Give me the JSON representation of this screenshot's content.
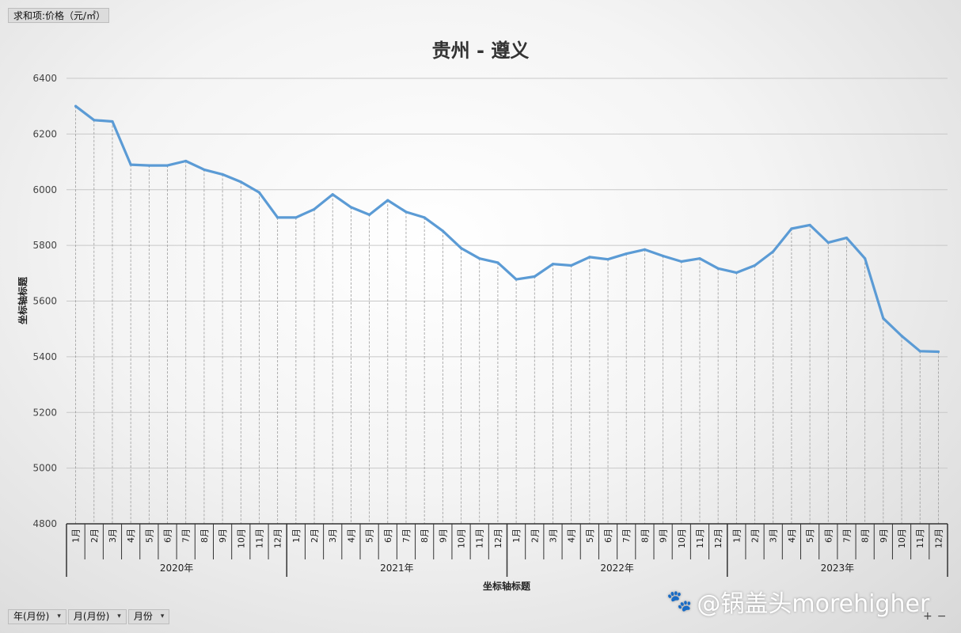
{
  "value_field": "求和项:价格（元/㎡）",
  "row_fields": [
    "年(月份)",
    "月(月份)",
    "月份"
  ],
  "watermark": "@锅盖头morehigher",
  "watermark_icon": "baidu-paw-icon",
  "zoom": {
    "plus": "+",
    "minus": "−"
  },
  "chart_data": {
    "type": "line",
    "title": "贵州 - 遵义",
    "xlabel": "坐标轴标题",
    "ylabel": "坐标轴标题",
    "ylim": [
      4800,
      6400
    ],
    "yticks": [
      4800,
      5000,
      5200,
      5400,
      5600,
      5800,
      6000,
      6200,
      6400
    ],
    "grid": true,
    "legend": "none",
    "line_color": "#5b9bd5",
    "years": [
      "2020年",
      "2021年",
      "2022年",
      "2023年"
    ],
    "months": [
      "1月",
      "2月",
      "3月",
      "4月",
      "5月",
      "6月",
      "7月",
      "8月",
      "9月",
      "10月",
      "11月",
      "12月"
    ],
    "series": [
      {
        "values": [
          6300,
          6250,
          6245,
          6090,
          6087,
          6087,
          6103,
          6072,
          6055,
          6028,
          5990,
          5900,
          5900,
          5930,
          5983,
          5937,
          5910,
          5962,
          5920,
          5900,
          5852,
          5790,
          5753,
          5738,
          5678,
          5688,
          5733,
          5728,
          5758,
          5750,
          5770,
          5785,
          5762,
          5742,
          5753,
          5717,
          5702,
          5728,
          5778,
          5860,
          5873,
          5810,
          5827,
          5753,
          5538,
          5475,
          5420,
          5418
        ]
      }
    ]
  }
}
